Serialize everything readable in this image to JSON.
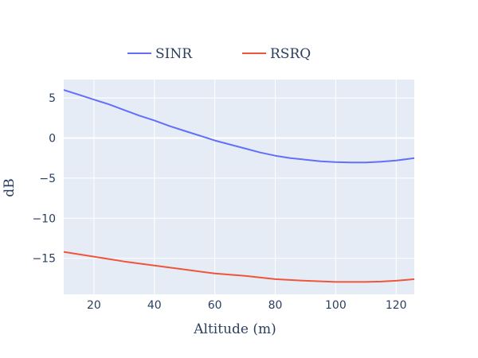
{
  "chart_data": {
    "type": "line",
    "title": "",
    "xlabel": "Altitude (m)",
    "ylabel": "dB",
    "xlim": [
      10,
      126
    ],
    "ylim": [
      -19.5,
      7.3
    ],
    "xticks": [
      20,
      40,
      60,
      80,
      100,
      120
    ],
    "yticks": [
      5,
      0,
      -5,
      -10,
      -15
    ],
    "ytick_labels": [
      "5",
      "0",
      "−5",
      "−10",
      "−15"
    ],
    "grid": true,
    "legend_position": "top",
    "series": [
      {
        "name": "SINR",
        "color": "#636efa",
        "x": [
          10,
          15,
          20,
          25,
          30,
          35,
          40,
          45,
          50,
          55,
          60,
          65,
          70,
          75,
          80,
          85,
          90,
          95,
          100,
          105,
          110,
          115,
          120,
          126
        ],
        "y": [
          6.0,
          5.4,
          4.8,
          4.2,
          3.5,
          2.8,
          2.2,
          1.5,
          0.9,
          0.3,
          -0.3,
          -0.8,
          -1.3,
          -1.8,
          -2.2,
          -2.5,
          -2.7,
          -2.9,
          -3.0,
          -3.05,
          -3.05,
          -2.95,
          -2.8,
          -2.5
        ]
      },
      {
        "name": "RSRQ",
        "color": "#ef553b",
        "x": [
          10,
          20,
          30,
          40,
          50,
          60,
          70,
          80,
          90,
          100,
          110,
          115,
          120,
          126
        ],
        "y": [
          -14.2,
          -14.8,
          -15.4,
          -15.9,
          -16.4,
          -16.9,
          -17.2,
          -17.6,
          -17.8,
          -17.95,
          -17.95,
          -17.9,
          -17.8,
          -17.6
        ]
      }
    ]
  }
}
